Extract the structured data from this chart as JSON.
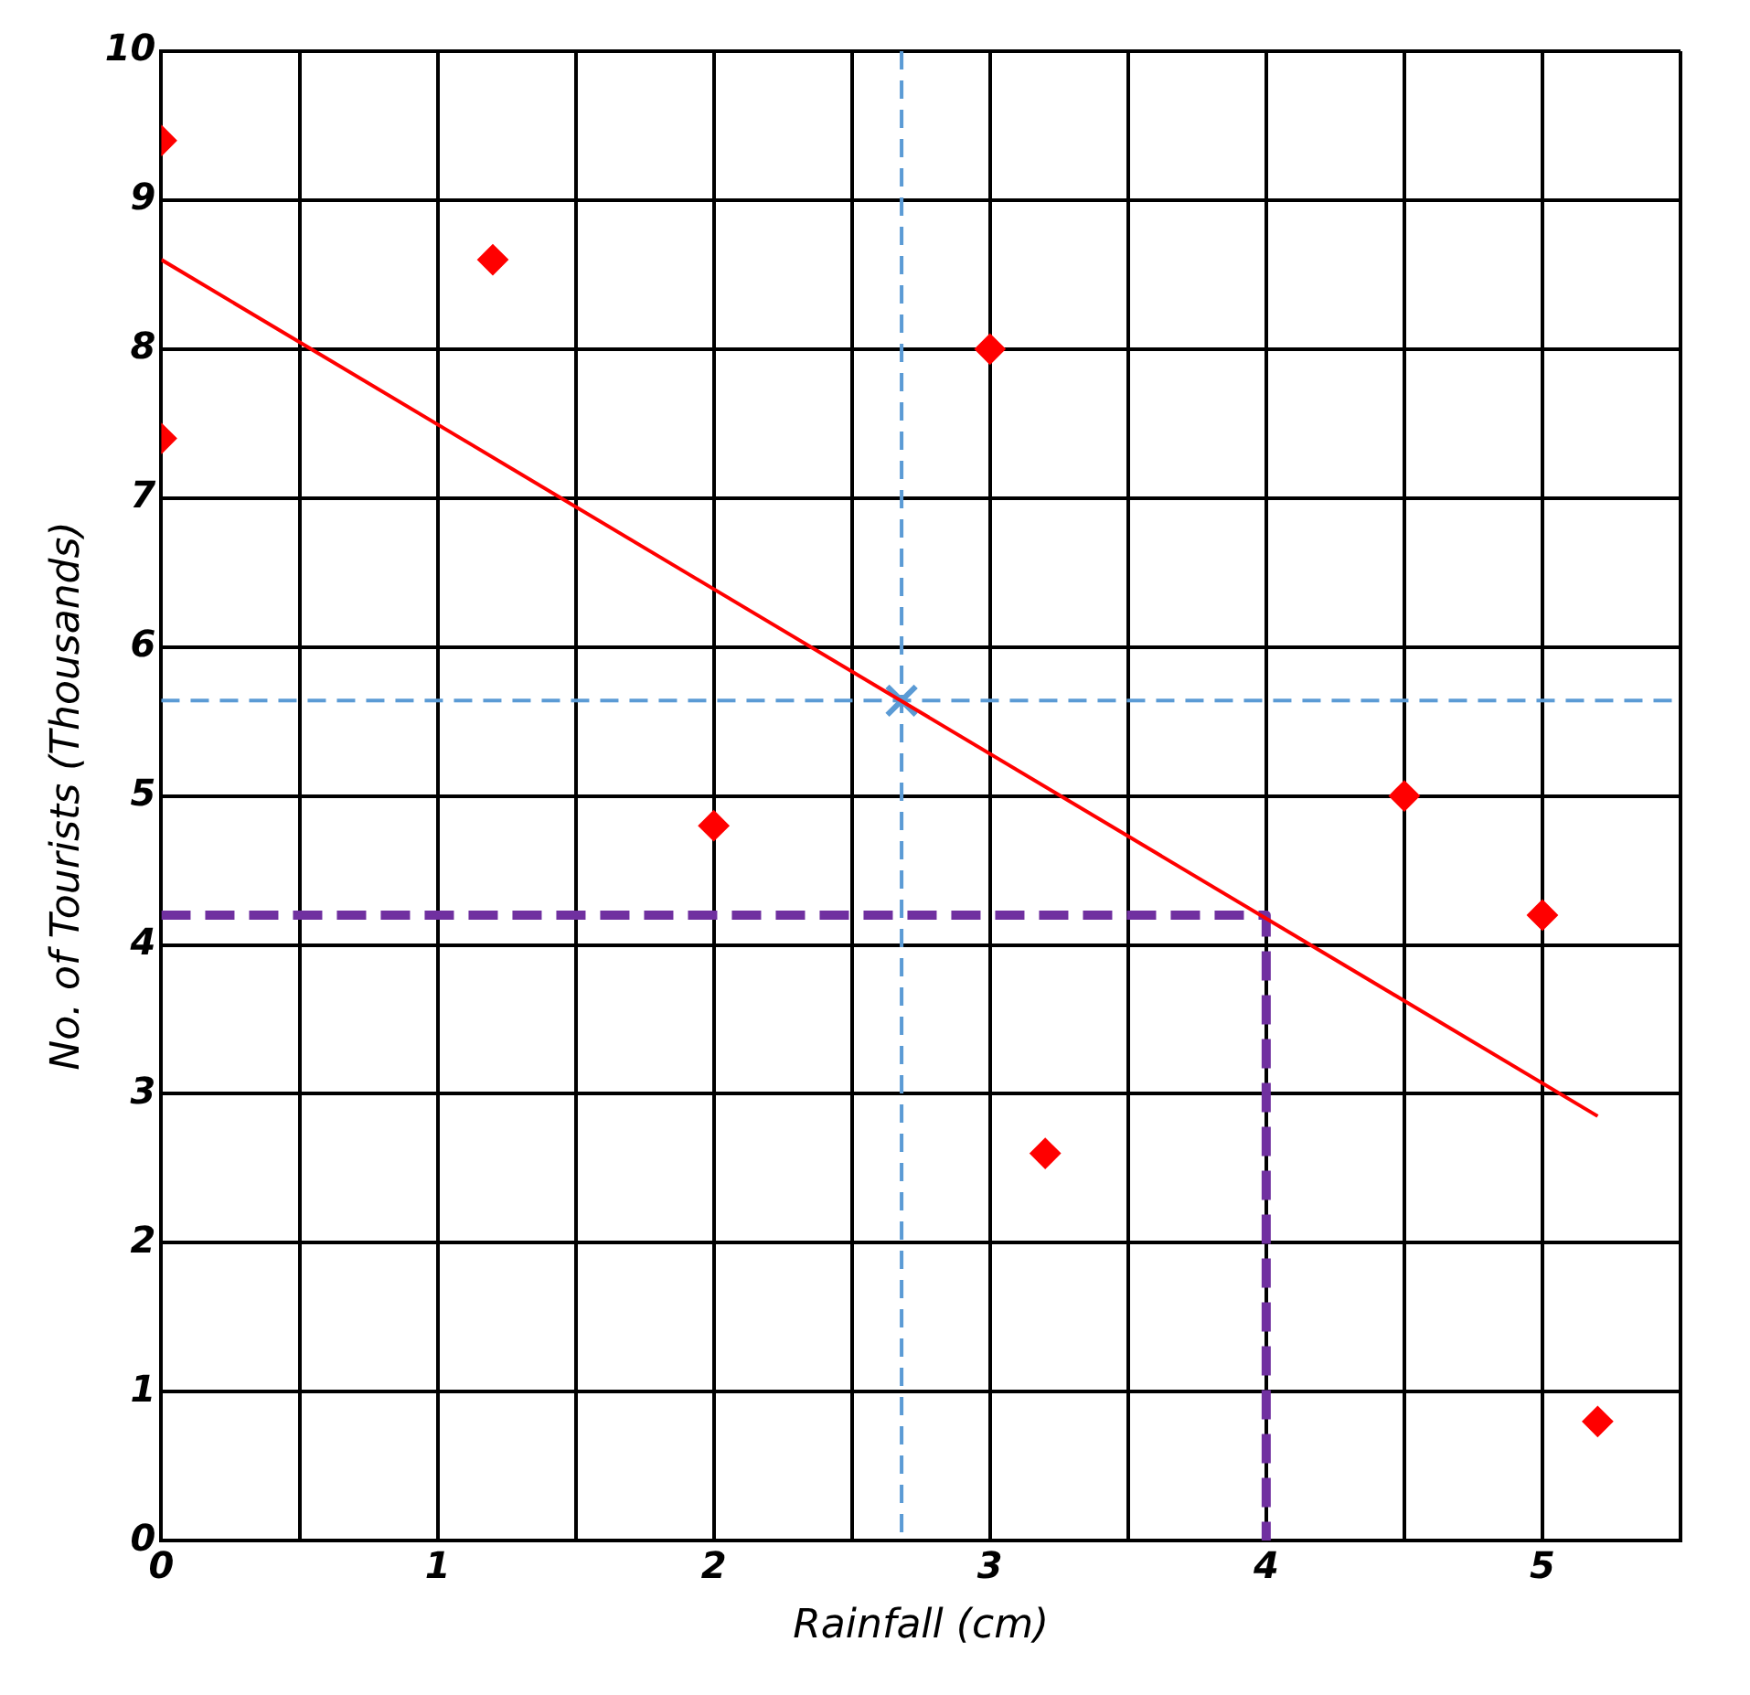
{
  "chart_data": {
    "type": "scatter",
    "xlabel": "Rainfall (cm)",
    "ylabel": "No. of Tourists (Thousands)",
    "xlim": [
      0,
      5.5
    ],
    "ylim": [
      0,
      10
    ],
    "xticks": [
      0,
      {
        "value": 0.5,
        "label": null
      },
      1,
      {
        "value": 1.5,
        "label": null
      },
      2,
      {
        "value": 2.5,
        "label": null
      },
      3,
      {
        "value": 3.5,
        "label": null
      },
      4,
      {
        "value": 4.5,
        "label": null
      },
      5,
      {
        "value": 5.5,
        "label": null
      }
    ],
    "yticks": [
      0,
      1,
      2,
      3,
      4,
      5,
      6,
      7,
      8,
      9,
      10
    ],
    "grid": true,
    "legend": false,
    "series": [
      {
        "type": "scatter",
        "color": "#ff0000",
        "marker": "diamond",
        "x": [
          0,
          0,
          1.2,
          2,
          3,
          3.2,
          4.5,
          5,
          5.2
        ],
        "values": [
          9.4,
          7.4,
          8.6,
          4.8,
          8,
          2.6,
          5,
          4.2,
          0.8
        ]
      },
      {
        "type": "line",
        "color": "#ff0000",
        "marker": "none",
        "line_style": "solid",
        "x": [
          0,
          5.2
        ],
        "values": [
          8.6,
          2.85
        ]
      },
      {
        "type": "line",
        "color": "#7030a0",
        "marker": "none",
        "line_style": "dashed",
        "x": [
          0,
          4,
          4
        ],
        "values": [
          4.2,
          4.2,
          0
        ]
      },
      {
        "type": "scatter",
        "color": "#5b9bd5",
        "marker": "cross",
        "x": [
          2.68
        ],
        "values": [
          5.64
        ]
      }
    ],
    "ref_lines": [
      {
        "axis": "x",
        "value": 2.68,
        "color": "#5b9bd5",
        "line_style": "dashed"
      },
      {
        "axis": "y",
        "value": 5.64,
        "color": "#5b9bd5",
        "line_style": "dashed"
      }
    ]
  }
}
